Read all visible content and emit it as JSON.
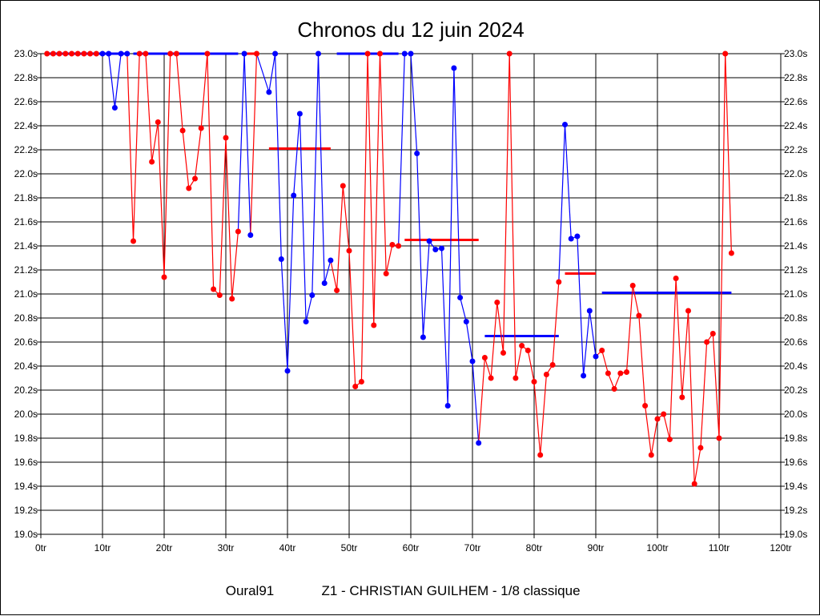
{
  "chart_data": {
    "type": "line",
    "title": "Chronos du 12 juin 2024",
    "footer_left": "Oural91",
    "footer_right": "Z1 - CHRISTIAN GUILHEM - 1/8 classique",
    "xlim": [
      0,
      120
    ],
    "ylim": [
      19.0,
      23.0
    ],
    "x_ticks": [
      0,
      10,
      20,
      30,
      40,
      50,
      60,
      70,
      80,
      90,
      100,
      110,
      120
    ],
    "x_tick_labels": [
      "0tr",
      "10tr",
      "20tr",
      "30tr",
      "40tr",
      "50tr",
      "60tr",
      "70tr",
      "80tr",
      "90tr",
      "100tr",
      "110tr",
      "120tr"
    ],
    "y_ticks": [
      19.0,
      19.2,
      19.4,
      19.6,
      19.8,
      20.0,
      20.2,
      20.4,
      20.6,
      20.8,
      21.0,
      21.2,
      21.4,
      21.6,
      21.8,
      22.0,
      22.2,
      22.4,
      22.6,
      22.8,
      23.0
    ],
    "y_tick_labels": [
      "19.0s",
      "19.2s",
      "19.4s",
      "19.6s",
      "19.8s",
      "20.0s",
      "20.2s",
      "20.4s",
      "20.6s",
      "20.8s",
      "21.0s",
      "21.2s",
      "21.4s",
      "21.6s",
      "21.8s",
      "22.0s",
      "22.2s",
      "22.4s",
      "22.6s",
      "22.8s",
      "23.0s"
    ],
    "grid": true,
    "colors": {
      "red": "#ff0000",
      "blue": "#0000ff"
    },
    "points": [
      [
        1,
        23.0,
        "red"
      ],
      [
        2,
        23.0,
        "red"
      ],
      [
        3,
        23.0,
        "red"
      ],
      [
        4,
        23.0,
        "red"
      ],
      [
        5,
        23.0,
        "red"
      ],
      [
        6,
        23.0,
        "red"
      ],
      [
        7,
        23.0,
        "red"
      ],
      [
        8,
        23.0,
        "red"
      ],
      [
        9,
        23.0,
        "red"
      ],
      [
        10,
        23.0,
        "blue"
      ],
      [
        11,
        23.0,
        "blue"
      ],
      [
        12,
        22.55,
        "blue"
      ],
      [
        13,
        23.0,
        "blue"
      ],
      [
        14,
        23.0,
        "blue"
      ],
      [
        15,
        21.44,
        "red"
      ],
      [
        16,
        23.0,
        "red"
      ],
      [
        17,
        23.0,
        "red"
      ],
      [
        18,
        22.1,
        "red"
      ],
      [
        19,
        22.43,
        "red"
      ],
      [
        20,
        21.14,
        "red"
      ],
      [
        21,
        23.0,
        "red"
      ],
      [
        22,
        23.0,
        "red"
      ],
      [
        23,
        22.36,
        "red"
      ],
      [
        24,
        21.88,
        "red"
      ],
      [
        25,
        21.96,
        "red"
      ],
      [
        26,
        22.38,
        "red"
      ],
      [
        27,
        23.0,
        "red"
      ],
      [
        28,
        21.04,
        "red"
      ],
      [
        29,
        20.99,
        "red"
      ],
      [
        30,
        22.3,
        "red"
      ],
      [
        31,
        20.96,
        "red"
      ],
      [
        32,
        21.52,
        "red"
      ],
      [
        33,
        23.0,
        "blue"
      ],
      [
        34,
        21.49,
        "blue"
      ],
      [
        35,
        23.0,
        "red"
      ],
      [
        37,
        22.68,
        "blue"
      ],
      [
        38,
        23.0,
        "blue"
      ],
      [
        39,
        21.29,
        "blue"
      ],
      [
        40,
        20.36,
        "blue"
      ],
      [
        41,
        21.82,
        "blue"
      ],
      [
        42,
        22.5,
        "blue"
      ],
      [
        43,
        20.77,
        "blue"
      ],
      [
        44,
        20.99,
        "blue"
      ],
      [
        45,
        23.0,
        "blue"
      ],
      [
        46,
        21.09,
        "blue"
      ],
      [
        47,
        21.28,
        "blue"
      ],
      [
        48,
        21.03,
        "red"
      ],
      [
        49,
        21.9,
        "red"
      ],
      [
        50,
        21.36,
        "red"
      ],
      [
        51,
        20.23,
        "red"
      ],
      [
        52,
        20.27,
        "red"
      ],
      [
        53,
        23.0,
        "red"
      ],
      [
        54,
        20.74,
        "red"
      ],
      [
        55,
        23.0,
        "red"
      ],
      [
        56,
        21.17,
        "red"
      ],
      [
        57,
        21.41,
        "red"
      ],
      [
        58,
        21.4,
        "red"
      ],
      [
        59,
        23.0,
        "blue"
      ],
      [
        60,
        23.0,
        "blue"
      ],
      [
        61,
        22.17,
        "blue"
      ],
      [
        62,
        20.64,
        "blue"
      ],
      [
        63,
        21.44,
        "blue"
      ],
      [
        64,
        21.37,
        "blue"
      ],
      [
        65,
        21.38,
        "blue"
      ],
      [
        66,
        20.07,
        "blue"
      ],
      [
        67,
        22.88,
        "blue"
      ],
      [
        68,
        20.97,
        "blue"
      ],
      [
        69,
        20.77,
        "blue"
      ],
      [
        70,
        20.44,
        "blue"
      ],
      [
        71,
        19.76,
        "blue"
      ],
      [
        72,
        20.47,
        "red"
      ],
      [
        73,
        20.3,
        "red"
      ],
      [
        74,
        20.93,
        "red"
      ],
      [
        75,
        20.51,
        "red"
      ],
      [
        76,
        23.0,
        "red"
      ],
      [
        77,
        20.3,
        "red"
      ],
      [
        78,
        20.57,
        "red"
      ],
      [
        79,
        20.53,
        "red"
      ],
      [
        80,
        20.27,
        "red"
      ],
      [
        81,
        19.66,
        "red"
      ],
      [
        82,
        20.33,
        "red"
      ],
      [
        83,
        20.41,
        "red"
      ],
      [
        84,
        21.1,
        "red"
      ],
      [
        85,
        22.41,
        "blue"
      ],
      [
        86,
        21.46,
        "blue"
      ],
      [
        87,
        21.48,
        "blue"
      ],
      [
        88,
        20.32,
        "blue"
      ],
      [
        89,
        20.86,
        "blue"
      ],
      [
        90,
        20.48,
        "blue"
      ],
      [
        91,
        20.53,
        "red"
      ],
      [
        92,
        20.34,
        "red"
      ],
      [
        93,
        20.21,
        "red"
      ],
      [
        94,
        20.34,
        "red"
      ],
      [
        95,
        20.35,
        "red"
      ],
      [
        96,
        21.07,
        "red"
      ],
      [
        97,
        20.82,
        "red"
      ],
      [
        98,
        20.07,
        "red"
      ],
      [
        99,
        19.66,
        "red"
      ],
      [
        100,
        19.96,
        "red"
      ],
      [
        101,
        20.0,
        "red"
      ],
      [
        102,
        19.79,
        "red"
      ],
      [
        103,
        21.13,
        "red"
      ],
      [
        104,
        20.14,
        "red"
      ],
      [
        105,
        20.86,
        "red"
      ],
      [
        106,
        19.42,
        "red"
      ],
      [
        107,
        19.72,
        "red"
      ],
      [
        108,
        20.6,
        "red"
      ],
      [
        109,
        20.67,
        "red"
      ],
      [
        110,
        19.8,
        "red"
      ],
      [
        111,
        23.0,
        "red"
      ],
      [
        112,
        21.34,
        "red"
      ]
    ],
    "averages": [
      {
        "from": 1,
        "to": 14,
        "value": 23.0,
        "color": "blue"
      },
      {
        "from": 15,
        "to": 32,
        "value": 23.0,
        "color": "blue"
      },
      {
        "from": 33,
        "to": 35,
        "value": 23.0,
        "color": "red"
      },
      {
        "from": 37,
        "to": 47,
        "value": 22.21,
        "color": "red"
      },
      {
        "from": 48,
        "to": 58,
        "value": 23.0,
        "color": "blue"
      },
      {
        "from": 59,
        "to": 71,
        "value": 21.45,
        "color": "red"
      },
      {
        "from": 72,
        "to": 84,
        "value": 20.65,
        "color": "blue"
      },
      {
        "from": 85,
        "to": 90,
        "value": 21.17,
        "color": "red"
      },
      {
        "from": 91,
        "to": 112,
        "value": 21.01,
        "color": "blue"
      }
    ]
  }
}
